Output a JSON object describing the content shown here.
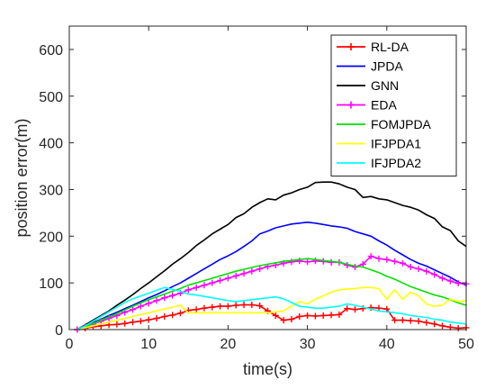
{
  "chart_data": {
    "type": "line",
    "xlabel": "time(s)",
    "ylabel": "position error(m)",
    "xlim": [
      0,
      50
    ],
    "ylim": [
      0,
      650
    ],
    "xticks": [
      0,
      10,
      20,
      30,
      40,
      50
    ],
    "yticks": [
      0,
      100,
      200,
      300,
      400,
      500,
      600
    ],
    "legend_position": "top-right",
    "grid": false,
    "series": [
      {
        "name": "RL-DA",
        "color": "#ff0000",
        "marker": "plus",
        "x": [
          1,
          2,
          3,
          4,
          5,
          6,
          7,
          8,
          9,
          10,
          11,
          12,
          13,
          14,
          15,
          16,
          17,
          18,
          19,
          20,
          21,
          22,
          23,
          24,
          25,
          26,
          27,
          28,
          29,
          30,
          31,
          32,
          33,
          34,
          35,
          36,
          37,
          38,
          39,
          40,
          41,
          42,
          43,
          44,
          45,
          46,
          47,
          48,
          49,
          50
        ],
        "y": [
          0,
          3,
          6,
          8,
          10,
          11,
          13,
          16,
          18,
          21,
          24,
          28,
          31,
          35,
          41,
          43,
          46,
          48,
          50,
          50,
          52,
          53,
          53,
          51,
          40,
          30,
          20,
          22,
          28,
          30,
          29,
          30,
          31,
          32,
          45,
          43,
          45,
          47,
          46,
          44,
          20,
          20,
          19,
          18,
          15,
          12,
          8,
          5,
          3,
          4
        ]
      },
      {
        "name": "JPDA",
        "color": "#0000ff",
        "x": [
          1,
          2,
          3,
          4,
          5,
          6,
          7,
          8,
          9,
          10,
          11,
          12,
          13,
          14,
          15,
          16,
          17,
          18,
          19,
          20,
          21,
          22,
          23,
          24,
          25,
          26,
          27,
          28,
          29,
          30,
          31,
          32,
          33,
          34,
          35,
          36,
          37,
          38,
          39,
          40,
          41,
          42,
          43,
          44,
          45,
          46,
          47,
          48,
          49,
          50
        ],
        "y": [
          0,
          7,
          15,
          22,
          30,
          37,
          45,
          52,
          60,
          68,
          75,
          83,
          92,
          100,
          110,
          120,
          130,
          140,
          150,
          158,
          167,
          178,
          190,
          205,
          211,
          218,
          222,
          226,
          228,
          230,
          228,
          225,
          222,
          220,
          217,
          210,
          205,
          200,
          190,
          181,
          170,
          160,
          150,
          142,
          136,
          128,
          120,
          112,
          102,
          95
        ]
      },
      {
        "name": "GNN",
        "color": "#000000",
        "x": [
          1,
          2,
          3,
          4,
          5,
          6,
          7,
          8,
          9,
          10,
          11,
          12,
          13,
          14,
          15,
          16,
          17,
          18,
          19,
          20,
          21,
          22,
          23,
          24,
          25,
          26,
          27,
          28,
          29,
          30,
          31,
          32,
          33,
          34,
          35,
          36,
          37,
          38,
          39,
          40,
          41,
          42,
          43,
          44,
          45,
          46,
          47,
          48,
          49,
          50
        ],
        "y": [
          0,
          10,
          20,
          30,
          40,
          52,
          63,
          75,
          88,
          100,
          113,
          126,
          140,
          152,
          165,
          180,
          192,
          205,
          215,
          225,
          240,
          248,
          262,
          272,
          280,
          278,
          288,
          293,
          300,
          305,
          315,
          316,
          316,
          312,
          305,
          300,
          283,
          285,
          280,
          278,
          272,
          266,
          262,
          256,
          246,
          238,
          220,
          212,
          190,
          178
        ]
      },
      {
        "name": "EDA",
        "color": "#ff00ff",
        "marker": "plus",
        "x": [
          1,
          2,
          3,
          4,
          5,
          6,
          7,
          8,
          9,
          10,
          11,
          12,
          13,
          14,
          15,
          16,
          17,
          18,
          19,
          20,
          21,
          22,
          23,
          24,
          25,
          26,
          27,
          28,
          29,
          30,
          31,
          32,
          33,
          34,
          35,
          36,
          37,
          38,
          39,
          40,
          41,
          42,
          43,
          44,
          45,
          46,
          47,
          48,
          49,
          50
        ],
        "y": [
          0,
          6,
          12,
          18,
          24,
          30,
          37,
          43,
          50,
          56,
          62,
          68,
          73,
          78,
          85,
          90,
          95,
          100,
          105,
          110,
          115,
          120,
          125,
          130,
          135,
          138,
          142,
          145,
          147,
          145,
          147,
          146,
          144,
          144,
          138,
          134,
          140,
          157,
          152,
          150,
          146,
          142,
          134,
          130,
          125,
          118,
          110,
          104,
          99,
          98
        ]
      },
      {
        "name": "FOMJPDA",
        "color": "#00e000",
        "x": [
          1,
          2,
          3,
          4,
          5,
          6,
          7,
          8,
          9,
          10,
          11,
          12,
          13,
          14,
          15,
          16,
          17,
          18,
          19,
          20,
          21,
          22,
          23,
          24,
          25,
          26,
          27,
          28,
          29,
          30,
          31,
          32,
          33,
          34,
          35,
          36,
          37,
          38,
          39,
          40,
          41,
          42,
          43,
          44,
          45,
          46,
          47,
          48,
          49,
          50
        ],
        "y": [
          0,
          6,
          13,
          20,
          27,
          34,
          42,
          50,
          57,
          64,
          70,
          76,
          82,
          88,
          95,
          100,
          105,
          110,
          115,
          120,
          125,
          129,
          133,
          137,
          140,
          143,
          146,
          148,
          150,
          152,
          150,
          148,
          146,
          144,
          140,
          136,
          134,
          128,
          122,
          114,
          108,
          100,
          92,
          86,
          80,
          74,
          70,
          64,
          57,
          52
        ]
      },
      {
        "name": "IFJPDA1",
        "color": "#ffff00",
        "x": [
          1,
          2,
          3,
          4,
          5,
          6,
          7,
          8,
          9,
          10,
          11,
          12,
          13,
          14,
          15,
          16,
          17,
          18,
          19,
          20,
          21,
          22,
          23,
          24,
          25,
          26,
          27,
          28,
          29,
          30,
          31,
          32,
          33,
          34,
          35,
          36,
          37,
          38,
          39,
          40,
          41,
          42,
          43,
          44,
          45,
          46,
          47,
          48,
          49,
          50
        ],
        "y": [
          0,
          4,
          8,
          12,
          16,
          20,
          24,
          28,
          32,
          36,
          40,
          44,
          48,
          52,
          36,
          36,
          36,
          36,
          36,
          36,
          36,
          36,
          36,
          36,
          36,
          38,
          40,
          50,
          60,
          55,
          65,
          72,
          80,
          85,
          87,
          88,
          90,
          90,
          88,
          65,
          85,
          65,
          80,
          72,
          55,
          50,
          52,
          65,
          60,
          62
        ]
      },
      {
        "name": "IFJPDA2",
        "color": "#00ffff",
        "x": [
          1,
          2,
          3,
          4,
          5,
          6,
          7,
          8,
          9,
          10,
          11,
          12,
          13,
          14,
          15,
          16,
          17,
          18,
          19,
          20,
          21,
          22,
          23,
          24,
          25,
          26,
          27,
          28,
          29,
          30,
          31,
          32,
          33,
          34,
          35,
          36,
          37,
          38,
          39,
          40,
          41,
          42,
          43,
          44,
          45,
          46,
          47,
          48,
          49,
          50
        ],
        "y": [
          0,
          8,
          18,
          28,
          38,
          48,
          58,
          66,
          72,
          78,
          84,
          90,
          86,
          82,
          76,
          74,
          71,
          68,
          65,
          62,
          60,
          62,
          64,
          66,
          68,
          70,
          66,
          58,
          50,
          48,
          46,
          46,
          48,
          50,
          55,
          52,
          48,
          44,
          40,
          38,
          36,
          34,
          30,
          28,
          26,
          22,
          20,
          16,
          14,
          12
        ]
      }
    ]
  }
}
